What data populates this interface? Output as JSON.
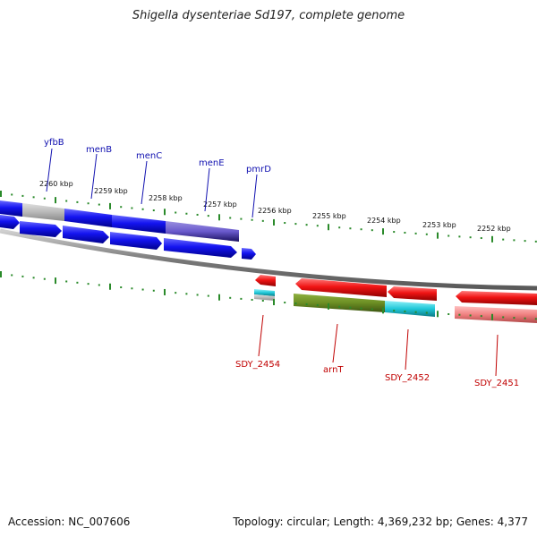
{
  "title": "Shigella dysenteriae Sd197, complete genome",
  "footer": {
    "accession": "Accession: NC_007606",
    "summary": "Topology: circular; Length: 4,369,232 bp; Genes: 4,377"
  },
  "axis_ticks": [
    "2260 kbp",
    "2259 kbp",
    "2258 kbp",
    "2257 kbp",
    "2256 kbp",
    "2255 kbp",
    "2254 kbp",
    "2253 kbp",
    "2252 kbp"
  ],
  "genes_top": [
    "yfbB",
    "menB",
    "menC",
    "menE",
    "pmrD"
  ],
  "genes_bottom": [
    "SDY_2454",
    "arnT",
    "SDY_2452",
    "SDY_2451"
  ],
  "colors": {
    "forward_feature": "#1414f0",
    "reverse_feature": "#f01414",
    "grey_feature": "#b8b8b8",
    "olive_feature": "#6b8e23",
    "cyan_feature": "#20c8d8",
    "pink_feature": "#f08080",
    "purple_feature": "#6a5acd",
    "backbone": "#7a7a7a",
    "tick": "#2a8a2a",
    "top_label": "#1010b0",
    "bottom_label": "#c00000"
  }
}
